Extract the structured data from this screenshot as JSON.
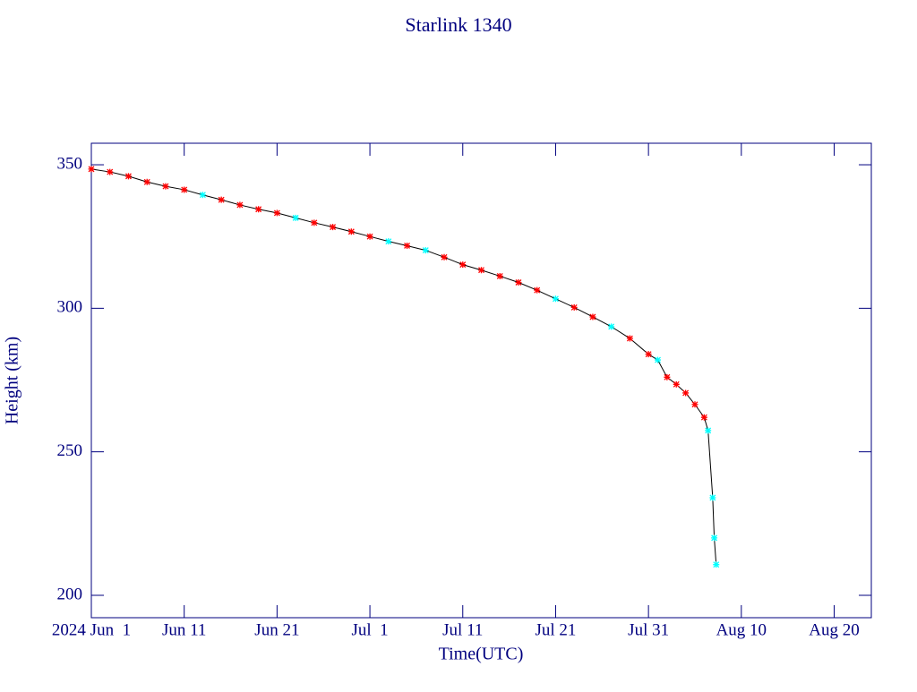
{
  "chart_data": {
    "type": "line",
    "title": "Starlink 1340",
    "x_label": "Time(UTC)",
    "y_label": "Height (km)",
    "xlim": [
      "2024-06-01",
      "2024-08-24"
    ],
    "xticks": [
      {
        "value": "2024-06-01",
        "label": "2024 Jun  1"
      },
      {
        "value": "2024-06-11",
        "label": "Jun 11"
      },
      {
        "value": "2024-06-21",
        "label": "Jun 21"
      },
      {
        "value": "2024-07-01",
        "label": "Jul  1"
      },
      {
        "value": "2024-07-11",
        "label": "Jul 11"
      },
      {
        "value": "2024-07-21",
        "label": "Jul 21"
      },
      {
        "value": "2024-07-31",
        "label": "Jul 31"
      },
      {
        "value": "2024-08-10",
        "label": "Aug 10"
      },
      {
        "value": "2024-08-20",
        "label": "Aug 20"
      }
    ],
    "ylim": [
      192.2,
      357.5
    ],
    "yticks": [
      200,
      250,
      300,
      350
    ],
    "x": [
      "2024-06-01",
      "2024-06-03",
      "2024-06-05",
      "2024-06-07",
      "2024-06-09",
      "2024-06-11",
      "2024-06-13",
      "2024-06-15",
      "2024-06-17",
      "2024-06-19",
      "2024-06-21",
      "2024-06-23",
      "2024-06-25",
      "2024-06-27",
      "2024-06-29",
      "2024-07-01",
      "2024-07-03",
      "2024-07-05",
      "2024-07-07",
      "2024-07-09",
      "2024-07-11",
      "2024-07-13",
      "2024-07-15",
      "2024-07-17",
      "2024-07-19",
      "2024-07-21",
      "2024-07-23",
      "2024-07-25",
      "2024-07-27",
      "2024-07-29",
      "2024-07-31",
      "2024-08-01",
      "2024-08-02",
      "2024-08-03",
      "2024-08-04",
      "2024-08-05",
      "2024-08-06",
      "2024-08-06T10:00",
      "2024-08-06T22:00",
      "2024-08-07T02:00",
      "2024-08-07T07:00"
    ],
    "series": [
      {
        "color": "#000000",
        "values": [
          348.5,
          347.5,
          346.0,
          344.0,
          342.5,
          341.3,
          339.5,
          337.8,
          336.0,
          334.5,
          333.2,
          331.5,
          329.8,
          328.3,
          326.7,
          325.0,
          323.3,
          321.8,
          320.2,
          317.8,
          315.2,
          313.3,
          311.2,
          309.0,
          306.3,
          303.3,
          300.3,
          297.0,
          293.6,
          289.5,
          284.0,
          282.0,
          276.0,
          273.5,
          270.5,
          266.5,
          262.0,
          257.4,
          234.0,
          220.0,
          210.7
        ],
        "point_colors": [
          "#ff0000",
          "#ff0000",
          "#ff0000",
          "#ff0000",
          "#ff0000",
          "#ff0000",
          "#00ffff",
          "#ff0000",
          "#ff0000",
          "#ff0000",
          "#ff0000",
          "#00ffff",
          "#ff0000",
          "#ff0000",
          "#ff0000",
          "#ff0000",
          "#00ffff",
          "#ff0000",
          "#00ffff",
          "#ff0000",
          "#ff0000",
          "#ff0000",
          "#ff0000",
          "#ff0000",
          "#ff0000",
          "#00ffff",
          "#ff0000",
          "#ff0000",
          "#00ffff",
          "#ff0000",
          "#ff0000",
          "#00ffff",
          "#ff0000",
          "#ff0000",
          "#ff0000",
          "#ff0000",
          "#ff0000",
          "#00ffff",
          "#00ffff",
          "#00ffff",
          "#00ffff"
        ]
      }
    ]
  }
}
